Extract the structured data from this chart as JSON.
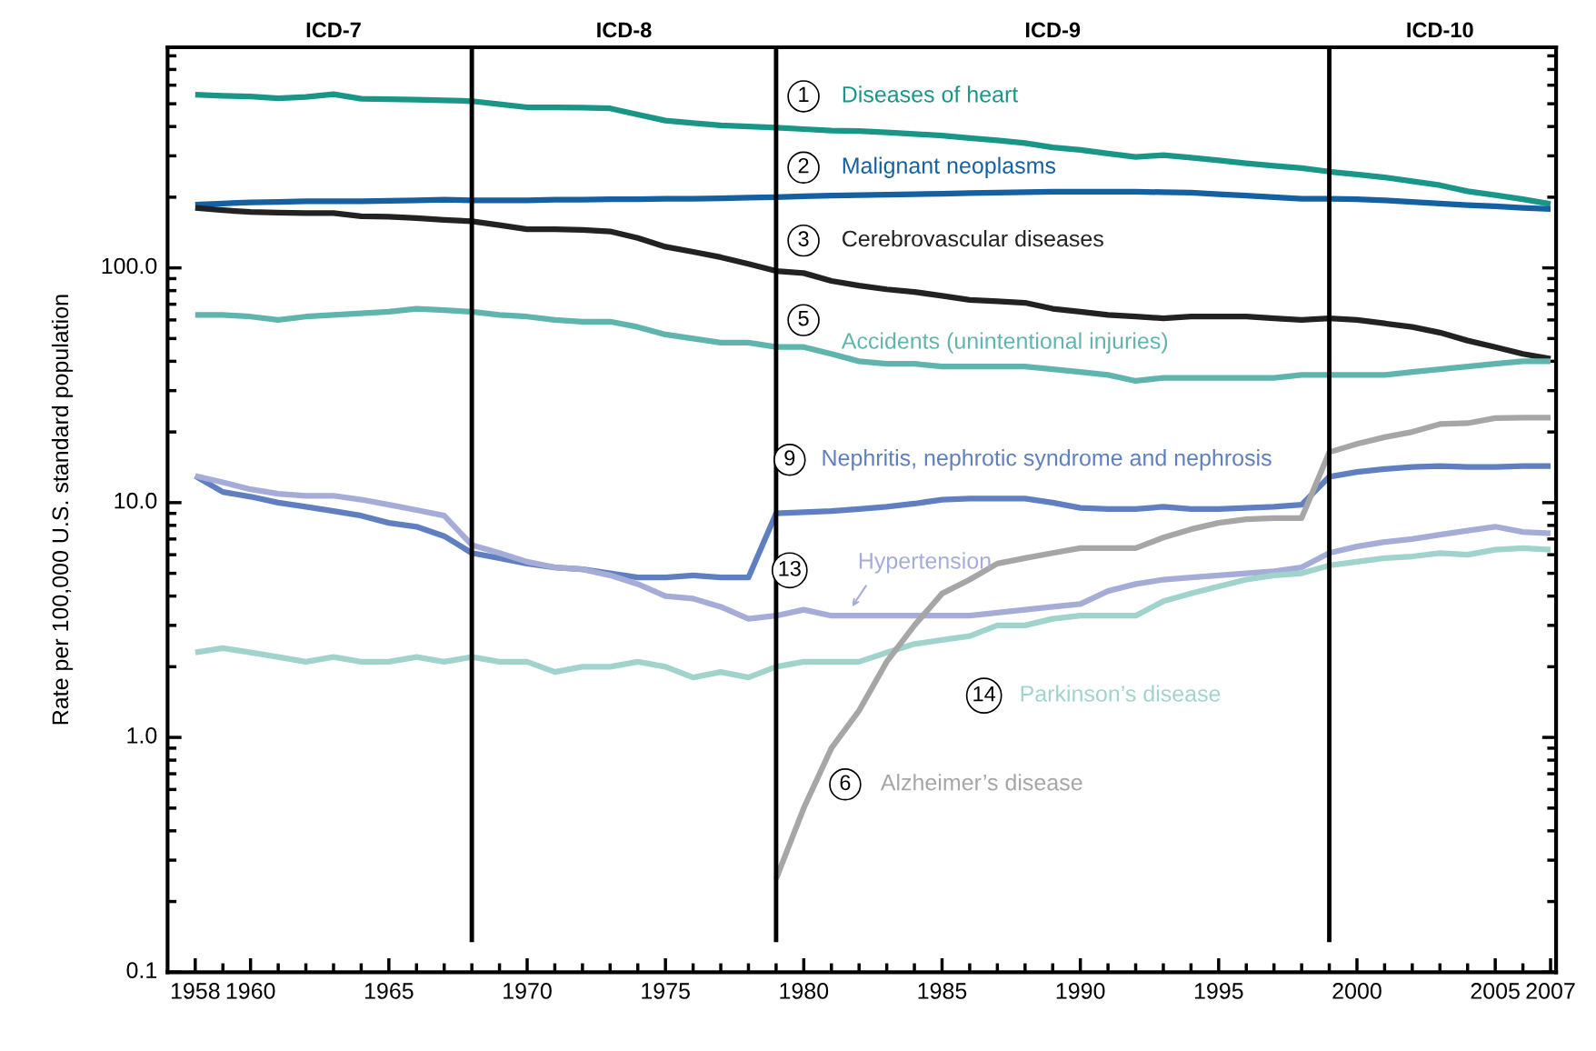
{
  "chart_data": {
    "type": "line",
    "log": "y",
    "ylabel": "Rate per 100,000 U.S. standard population",
    "x": [
      1958,
      1959,
      1960,
      1961,
      1962,
      1963,
      1964,
      1965,
      1966,
      1967,
      1968,
      1969,
      1970,
      1971,
      1972,
      1973,
      1974,
      1975,
      1976,
      1977,
      1978,
      1979,
      1980,
      1981,
      1982,
      1983,
      1984,
      1985,
      1986,
      1987,
      1988,
      1989,
      1990,
      1991,
      1992,
      1993,
      1994,
      1995,
      1996,
      1997,
      1998,
      1999,
      2000,
      2001,
      2002,
      2003,
      2004,
      2005,
      2006,
      2007
    ],
    "series": [
      {
        "name": "Diseases of heart",
        "color": "#1a9688",
        "values": [
          547,
          541,
          537,
          527,
          535,
          549,
          525,
          523,
          521,
          517,
          513,
          498,
          483,
          482,
          481,
          478,
          450,
          424,
          414,
          405,
          400,
          396,
          390,
          384,
          383,
          378,
          372,
          366,
          357,
          349,
          340,
          326,
          318,
          307,
          297,
          302,
          295,
          287,
          279,
          272,
          266,
          257,
          250,
          243,
          234,
          225,
          212,
          204,
          196,
          187
        ]
      },
      {
        "name": "Malignant neoplasms",
        "color": "#1560a0",
        "values": [
          186,
          188,
          190,
          191,
          192,
          192,
          192,
          193,
          194,
          195,
          194,
          194,
          194,
          195,
          195,
          196,
          196,
          197,
          197,
          198,
          199,
          200,
          202,
          203,
          204,
          205,
          206,
          207,
          208,
          209,
          210,
          211,
          211,
          211,
          211,
          210,
          209,
          206,
          203,
          200,
          197,
          197,
          196,
          194,
          191,
          188,
          185,
          183,
          180,
          178
        ]
      },
      {
        "name": "Cerebrovascular diseases",
        "color": "#222222",
        "values": [
          180,
          176,
          173,
          172,
          171,
          171,
          166,
          165,
          163,
          160,
          158,
          152,
          146,
          146,
          145,
          143,
          134,
          123,
          117,
          111,
          104,
          97,
          95,
          88,
          84,
          81,
          79,
          76,
          73,
          72,
          71,
          67,
          65,
          63,
          62,
          61,
          62,
          62,
          62,
          61,
          60,
          61,
          60,
          58,
          56,
          53,
          49,
          46,
          43,
          41
        ]
      },
      {
        "name": "Accidents (unintentional injuries)",
        "color": "#5fb5ad",
        "values": [
          63,
          63,
          62,
          60,
          62,
          63,
          64,
          65,
          67,
          66,
          65,
          63,
          62,
          60,
          59,
          59,
          56,
          52,
          50,
          48,
          48,
          46,
          46,
          43,
          40,
          39,
          39,
          38,
          38,
          38,
          38,
          37,
          36,
          35,
          33,
          34,
          34,
          34,
          34,
          34,
          35,
          35,
          35,
          35,
          36,
          37,
          38,
          39,
          40,
          40
        ]
      },
      {
        "name": "Nephritis, nephrotic syndrome and nephrosis",
        "color": "#5f7fc0",
        "values": [
          13.0,
          11.1,
          10.6,
          10.0,
          9.6,
          9.2,
          8.8,
          8.2,
          7.9,
          7.2,
          6.1,
          5.8,
          5.5,
          5.3,
          5.2,
          5.0,
          4.8,
          4.8,
          4.9,
          4.8,
          4.8,
          9.0,
          9.1,
          9.2,
          9.4,
          9.6,
          9.9,
          10.3,
          10.4,
          10.4,
          10.4,
          10.0,
          9.5,
          9.4,
          9.4,
          9.6,
          9.4,
          9.4,
          9.5,
          9.6,
          9.8,
          12.9,
          13.5,
          13.9,
          14.2,
          14.3,
          14.2,
          14.2,
          14.3,
          14.3
        ]
      },
      {
        "name": "Hypertension",
        "color": "#a5acd8",
        "values": [
          13.0,
          12.2,
          11.4,
          10.9,
          10.7,
          10.7,
          10.3,
          9.8,
          9.3,
          8.8,
          6.6,
          6.1,
          5.6,
          5.3,
          5.2,
          4.9,
          4.5,
          4.0,
          3.9,
          3.6,
          3.2,
          3.3,
          3.5,
          3.3,
          3.3,
          3.3,
          3.3,
          3.3,
          3.3,
          3.4,
          3.5,
          3.6,
          3.7,
          4.2,
          4.5,
          4.7,
          4.8,
          4.9,
          5.0,
          5.1,
          5.3,
          6.1,
          6.5,
          6.8,
          7.0,
          7.3,
          7.6,
          7.9,
          7.5,
          7.4
        ]
      },
      {
        "name": "Parkinson’s disease",
        "color": "#9fd3cc",
        "values": [
          2.3,
          2.4,
          2.3,
          2.2,
          2.1,
          2.2,
          2.1,
          2.1,
          2.2,
          2.1,
          2.2,
          2.1,
          2.1,
          1.9,
          2.0,
          2.0,
          2.1,
          2.0,
          1.8,
          1.9,
          1.8,
          2.0,
          2.1,
          2.1,
          2.1,
          2.3,
          2.5,
          2.6,
          2.7,
          3.0,
          3.0,
          3.2,
          3.3,
          3.3,
          3.3,
          3.8,
          4.1,
          4.4,
          4.7,
          4.9,
          5.0,
          5.4,
          5.6,
          5.8,
          5.9,
          6.1,
          6.0,
          6.3,
          6.4,
          6.3
        ]
      },
      {
        "name": "Alzheimer’s disease",
        "color": "#a6a6a6",
        "values": [
          null,
          null,
          null,
          null,
          null,
          null,
          null,
          null,
          null,
          null,
          null,
          null,
          null,
          null,
          null,
          null,
          null,
          null,
          null,
          null,
          null,
          0.25,
          0.5,
          0.9,
          1.3,
          2.1,
          3.0,
          4.1,
          4.7,
          5.5,
          5.8,
          6.1,
          6.4,
          6.4,
          6.4,
          7.1,
          7.7,
          8.2,
          8.5,
          8.6,
          8.6,
          16.4,
          17.8,
          19.0,
          20.0,
          21.6,
          21.8,
          22.9,
          23.0,
          23.0
        ]
      }
    ],
    "annotations": [
      "1",
      "2",
      "3",
      "5",
      "9",
      "13",
      "14",
      "6",
      "ICD-7",
      "ICD-8",
      "ICD-9",
      "ICD-10"
    ],
    "ref_lines": [
      {
        "axis": "x",
        "value": 1968,
        "color": "#000000"
      },
      {
        "axis": "x",
        "value": 1979,
        "color": "#000000"
      },
      {
        "axis": "x",
        "value": 1999,
        "color": "#000000"
      }
    ],
    "xlim": [
      1957,
      2007.2
    ],
    "xticks": [
      1958,
      1960,
      1965,
      1970,
      1975,
      1980,
      1985,
      1990,
      1995,
      2000,
      2005,
      2007,
      {
        "value": 1959,
        "label": null
      },
      {
        "value": 1961,
        "label": null
      },
      {
        "value": 1962,
        "label": null
      },
      {
        "value": 1963,
        "label": null
      },
      {
        "value": 1964,
        "label": null
      },
      {
        "value": 1966,
        "label": null
      },
      {
        "value": 1967,
        "label": null
      },
      {
        "value": 1968,
        "label": null
      },
      {
        "value": 1969,
        "label": null
      },
      {
        "value": 1971,
        "label": null
      },
      {
        "value": 1972,
        "label": null
      },
      {
        "value": 1973,
        "label": null
      },
      {
        "value": 1974,
        "label": null
      },
      {
        "value": 1976,
        "label": null
      },
      {
        "value": 1977,
        "label": null
      },
      {
        "value": 1978,
        "label": null
      },
      {
        "value": 1979,
        "label": null
      },
      {
        "value": 1981,
        "label": null
      },
      {
        "value": 1982,
        "label": null
      },
      {
        "value": 1983,
        "label": null
      },
      {
        "value": 1984,
        "label": null
      },
      {
        "value": 1986,
        "label": null
      },
      {
        "value": 1987,
        "label": null
      },
      {
        "value": 1988,
        "label": null
      },
      {
        "value": 1989,
        "label": null
      },
      {
        "value": 1991,
        "label": null
      },
      {
        "value": 1992,
        "label": null
      },
      {
        "value": 1993,
        "label": null
      },
      {
        "value": 1994,
        "label": null
      },
      {
        "value": 1996,
        "label": null
      },
      {
        "value": 1997,
        "label": null
      },
      {
        "value": 1998,
        "label": null
      },
      {
        "value": 1999,
        "label": null
      },
      {
        "value": 2001,
        "label": null
      },
      {
        "value": 2002,
        "label": null
      },
      {
        "value": 2003,
        "label": null
      },
      {
        "value": 2004,
        "label": null
      },
      {
        "value": 2006,
        "label": null
      }
    ],
    "ylim": [
      0.1,
      870
    ],
    "yticks": [
      0.1,
      {
        "value": 1,
        "label": "1.0"
      },
      {
        "value": 10,
        "label": "10.0"
      },
      {
        "value": 100,
        "label": "100.0"
      },
      {
        "value": 0.2,
        "label": null
      },
      {
        "value": 0.3,
        "label": null
      },
      {
        "value": 0.4,
        "label": null
      },
      {
        "value": 0.5,
        "label": null
      },
      {
        "value": 0.6,
        "label": null
      },
      {
        "value": 0.7,
        "label": null
      },
      {
        "value": 0.8,
        "label": null
      },
      {
        "value": 0.9,
        "label": null
      },
      {
        "value": 2,
        "label": null
      },
      {
        "value": 3,
        "label": null
      },
      {
        "value": 4,
        "label": null
      },
      {
        "value": 5,
        "label": null
      },
      {
        "value": 6,
        "label": null
      },
      {
        "value": 7,
        "label": null
      },
      {
        "value": 8,
        "label": null
      },
      {
        "value": 9,
        "label": null
      },
      {
        "value": 20,
        "label": null
      },
      {
        "value": 30,
        "label": null
      },
      {
        "value": 40,
        "label": null
      },
      {
        "value": 50,
        "label": null
      },
      {
        "value": 60,
        "label": null
      },
      {
        "value": 70,
        "label": null
      },
      {
        "value": 80,
        "label": null
      },
      {
        "value": 90,
        "label": null
      },
      {
        "value": 200,
        "label": null
      },
      {
        "value": 300,
        "label": null
      },
      {
        "value": 400,
        "label": null
      },
      {
        "value": 500,
        "label": null
      },
      {
        "value": 600,
        "label": null
      },
      {
        "value": 700,
        "label": null
      },
      {
        "value": 800,
        "label": null
      }
    ]
  }
}
